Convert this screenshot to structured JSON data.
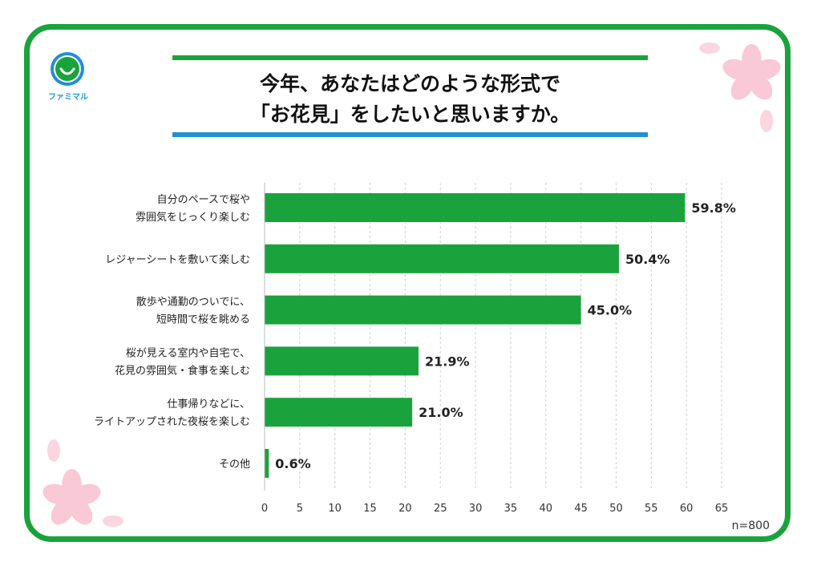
{
  "brand": {
    "name": "ファミマル",
    "logo_icon": "smile-circle-icon",
    "colors": {
      "green": "#1aa33c",
      "blue": "#1f8fd6",
      "petal": "#f9c9d8"
    }
  },
  "title": {
    "line1": "今年、あなたはどのような形式で",
    "line2": "「お花見」をしたいと思いますか。"
  },
  "chart_data": {
    "type": "bar",
    "orientation": "horizontal",
    "categories": [
      [
        "自分のペースで桜や",
        "雰囲気をじっくり楽しむ"
      ],
      [
        "レジャーシートを敷いて楽しむ"
      ],
      [
        "散歩や通勤のついでに、",
        "短時間で桜を眺める"
      ],
      [
        "桜が見える室内や自宅で、",
        "花見の雰囲気・食事を楽しむ"
      ],
      [
        "仕事帰りなどに、",
        "ライトアップされた夜桜を楽しむ"
      ],
      [
        "その他"
      ]
    ],
    "values": [
      59.8,
      50.4,
      45.0,
      21.9,
      21.0,
      0.6
    ],
    "labels": [
      "59.8%",
      "50.4%",
      "45.0%",
      "21.9%",
      "21.0%",
      "0.6%"
    ],
    "xlim": [
      0,
      65
    ],
    "ticks": [
      0,
      5,
      10,
      15,
      20,
      25,
      30,
      35,
      40,
      45,
      50,
      55,
      60,
      65
    ],
    "grid": true,
    "bar_color": "#1aa33c",
    "note": "n=800"
  }
}
